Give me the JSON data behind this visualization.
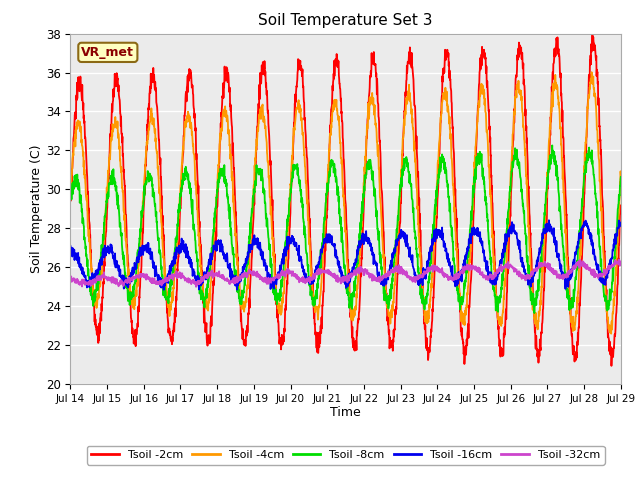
{
  "title": "Soil Temperature Set 3",
  "xlabel": "Time",
  "ylabel": "Soil Temperature (C)",
  "ylim": [
    20,
    38
  ],
  "yticks": [
    20,
    22,
    24,
    26,
    28,
    30,
    32,
    34,
    36,
    38
  ],
  "xtick_labels": [
    "Jul 14",
    "Jul 15",
    "Jul 16",
    "Jul 17",
    "Jul 18",
    "Jul 19",
    "Jul 20",
    "Jul 21",
    "Jul 22",
    "Jul 23",
    "Jul 24",
    "Jul 25",
    "Jul 26",
    "Jul 27",
    "Jul 28",
    "Jul 29"
  ],
  "colors": {
    "tsoil_2cm": "#ff0000",
    "tsoil_4cm": "#ff9900",
    "tsoil_8cm": "#00dd00",
    "tsoil_16cm": "#0000ee",
    "tsoil_32cm": "#cc44cc"
  },
  "legend_labels": [
    "Tsoil -2cm",
    "Tsoil -4cm",
    "Tsoil -8cm",
    "Tsoil -16cm",
    "Tsoil -32cm"
  ],
  "annotation_text": "VR_met",
  "fig_bg_color": "#ffffff",
  "plot_bg_color": "#ebebeb",
  "grid_color": "#ffffff",
  "linewidth": 1.3
}
